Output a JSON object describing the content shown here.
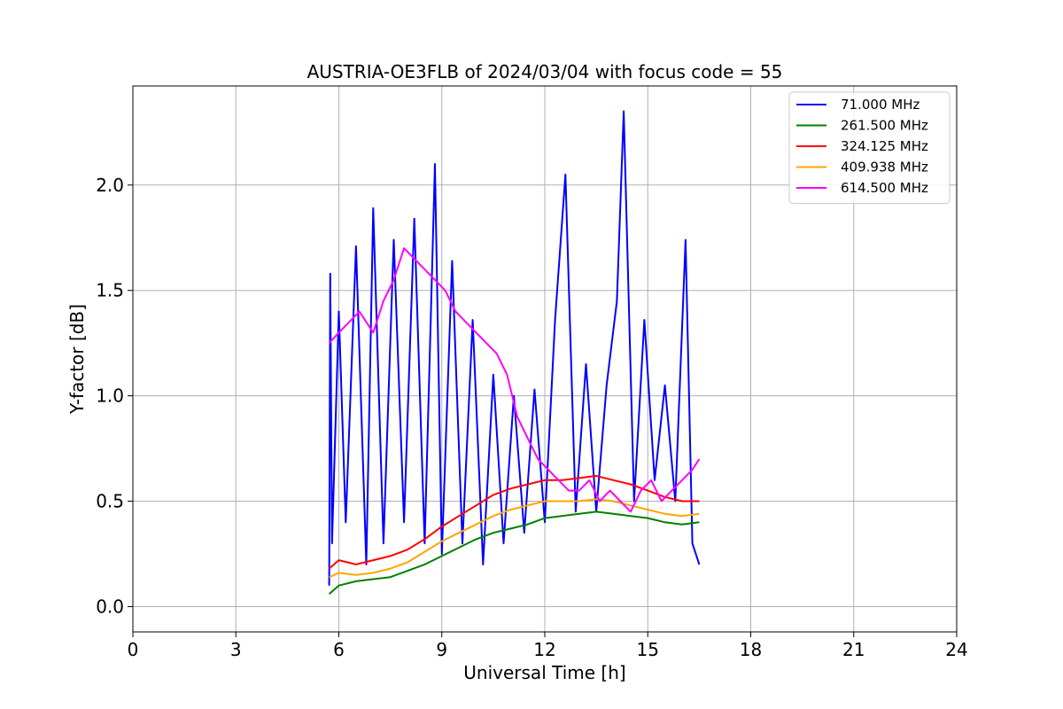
{
  "chart_data": {
    "type": "line",
    "title": "AUSTRIA-OE3FLB of 2024/03/04 with focus code = 55",
    "xlabel": "Universal Time [h]",
    "ylabel": "Y-factor [dB]",
    "xlim": [
      0,
      24
    ],
    "ylim": [
      -0.12,
      2.47
    ],
    "xticks": [
      0,
      3,
      6,
      9,
      12,
      15,
      18,
      21,
      24
    ],
    "xtick_labels": [
      "0",
      "3",
      "6",
      "9",
      "12",
      "15",
      "18",
      "21",
      "24"
    ],
    "yticks": [
      0.0,
      0.5,
      1.0,
      1.5,
      2.0
    ],
    "ytick_labels": [
      "0.0",
      "0.5",
      "1.0",
      "1.5",
      "2.0"
    ],
    "grid": true,
    "legend_position": "top-right",
    "series": [
      {
        "name": "  71.000 MHz",
        "color": "#0000ff",
        "x": [
          5.72,
          5.75,
          5.8,
          6.0,
          6.2,
          6.5,
          6.8,
          7.0,
          7.3,
          7.6,
          7.9,
          8.2,
          8.5,
          8.8,
          9.0,
          9.3,
          9.6,
          9.9,
          10.2,
          10.5,
          10.8,
          11.1,
          11.4,
          11.7,
          12.0,
          12.3,
          12.6,
          12.9,
          13.2,
          13.5,
          13.8,
          14.1,
          14.3,
          14.6,
          14.9,
          15.2,
          15.5,
          15.8,
          16.1,
          16.3,
          16.5
        ],
        "y": [
          0.1,
          1.58,
          0.3,
          1.4,
          0.4,
          1.71,
          0.2,
          1.89,
          0.3,
          1.74,
          0.4,
          1.84,
          0.3,
          2.1,
          0.25,
          1.64,
          0.3,
          1.36,
          0.2,
          1.1,
          0.3,
          1.0,
          0.35,
          1.03,
          0.4,
          1.36,
          2.05,
          0.45,
          1.15,
          0.45,
          1.05,
          1.45,
          2.35,
          0.5,
          1.36,
          0.6,
          1.05,
          0.5,
          1.74,
          0.3,
          0.2
        ]
      },
      {
        "name": "261.500 MHz",
        "color": "#008000",
        "x": [
          5.72,
          6.0,
          6.5,
          7.0,
          7.5,
          8.0,
          8.5,
          9.0,
          9.5,
          10.0,
          10.5,
          11.0,
          11.5,
          12.0,
          12.5,
          13.0,
          13.5,
          14.0,
          14.5,
          15.0,
          15.5,
          16.0,
          16.5
        ],
        "y": [
          0.06,
          0.1,
          0.12,
          0.13,
          0.14,
          0.17,
          0.2,
          0.24,
          0.28,
          0.32,
          0.35,
          0.37,
          0.39,
          0.42,
          0.43,
          0.44,
          0.45,
          0.44,
          0.43,
          0.42,
          0.4,
          0.39,
          0.4
        ]
      },
      {
        "name": "324.125 MHz",
        "color": "#ff0000",
        "x": [
          5.72,
          6.0,
          6.5,
          7.0,
          7.5,
          8.0,
          8.5,
          9.0,
          9.5,
          10.0,
          10.5,
          11.0,
          11.5,
          12.0,
          12.5,
          13.0,
          13.5,
          14.0,
          14.5,
          15.0,
          15.5,
          16.0,
          16.5
        ],
        "y": [
          0.18,
          0.22,
          0.2,
          0.22,
          0.24,
          0.27,
          0.32,
          0.38,
          0.43,
          0.48,
          0.53,
          0.56,
          0.58,
          0.6,
          0.6,
          0.61,
          0.62,
          0.6,
          0.58,
          0.55,
          0.52,
          0.5,
          0.5
        ]
      },
      {
        "name": "409.938 MHz",
        "color": "#ffa500",
        "x": [
          5.72,
          6.0,
          6.5,
          7.0,
          7.5,
          8.0,
          8.5,
          9.0,
          9.5,
          10.0,
          10.5,
          11.0,
          11.5,
          12.0,
          12.5,
          13.0,
          13.5,
          14.0,
          14.5,
          15.0,
          15.5,
          16.0,
          16.5
        ],
        "y": [
          0.14,
          0.16,
          0.15,
          0.16,
          0.18,
          0.21,
          0.26,
          0.31,
          0.35,
          0.39,
          0.43,
          0.46,
          0.48,
          0.5,
          0.5,
          0.5,
          0.51,
          0.5,
          0.48,
          0.46,
          0.44,
          0.43,
          0.44
        ]
      },
      {
        "name": "614.500 MHz",
        "color": "#ff00ff",
        "x": [
          5.72,
          6.0,
          6.3,
          6.6,
          7.0,
          7.3,
          7.6,
          7.9,
          8.2,
          8.5,
          8.8,
          9.1,
          9.4,
          9.7,
          10.0,
          10.3,
          10.6,
          10.9,
          11.2,
          11.5,
          11.8,
          12.1,
          12.4,
          12.7,
          13.0,
          13.3,
          13.6,
          13.9,
          14.2,
          14.5,
          14.8,
          15.1,
          15.4,
          15.7,
          16.0,
          16.3,
          16.5
        ],
        "y": [
          1.25,
          1.3,
          1.35,
          1.4,
          1.3,
          1.45,
          1.55,
          1.7,
          1.65,
          1.6,
          1.55,
          1.5,
          1.4,
          1.35,
          1.3,
          1.25,
          1.2,
          1.1,
          0.9,
          0.8,
          0.7,
          0.65,
          0.6,
          0.55,
          0.55,
          0.6,
          0.5,
          0.55,
          0.5,
          0.45,
          0.55,
          0.6,
          0.5,
          0.55,
          0.6,
          0.65,
          0.7
        ]
      }
    ]
  }
}
